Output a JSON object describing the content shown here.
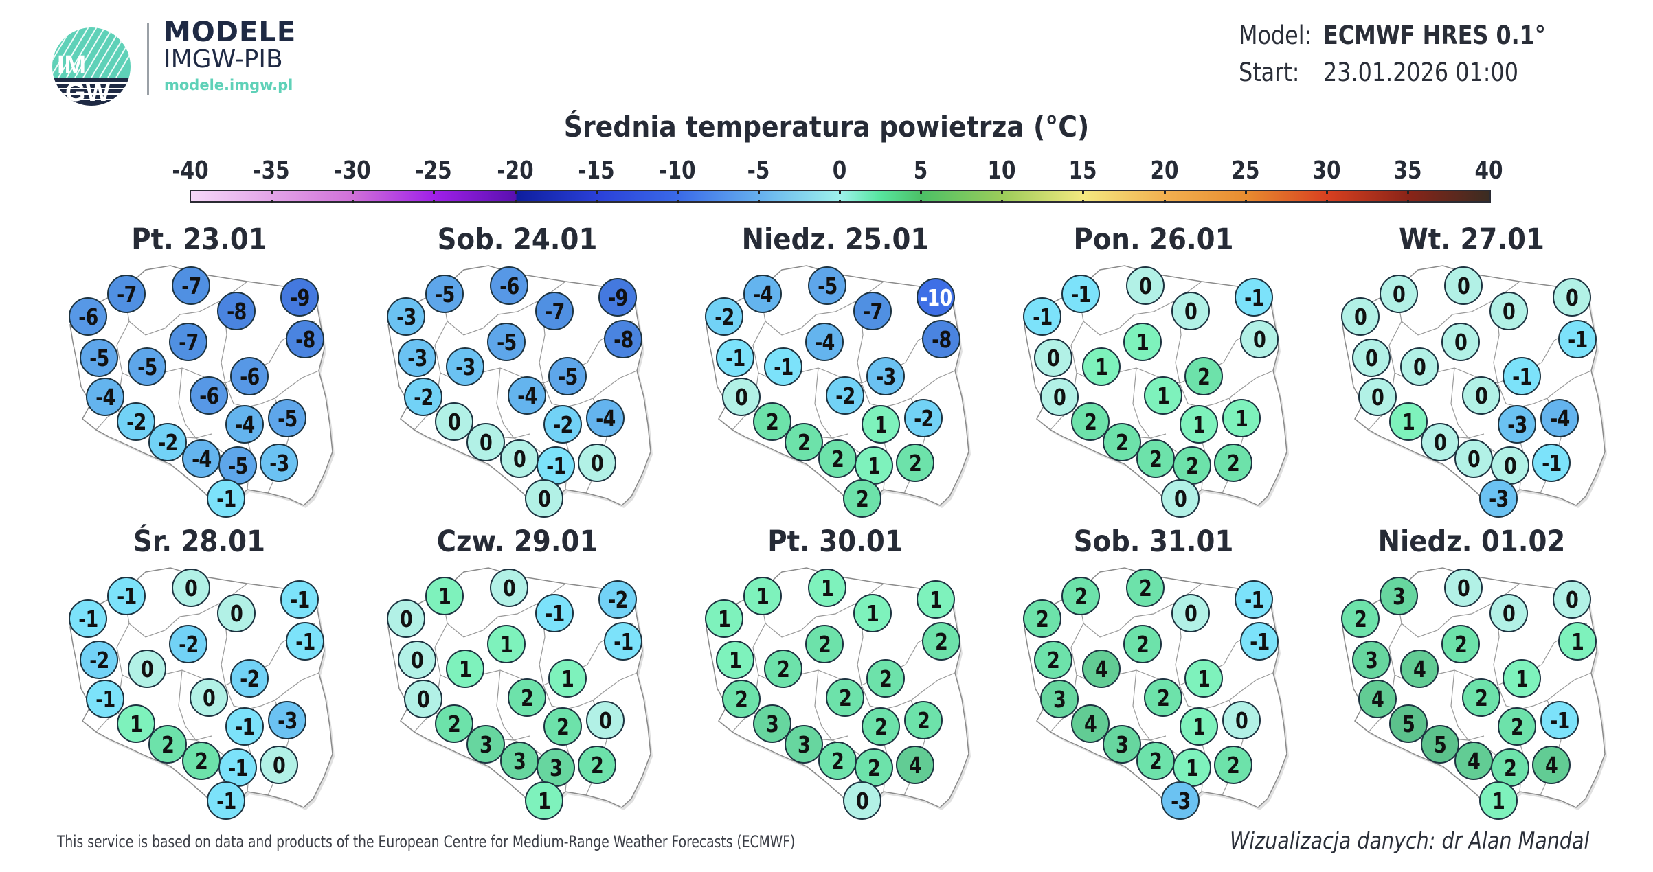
{
  "header": {
    "logo": {
      "icon": "imgw-logo-icon",
      "line1": "MODELE",
      "line2": "IMGW-PIB",
      "url": "modele.imgw.pl",
      "accent": "#5fd1b8",
      "dark": "#1f2a44"
    },
    "model_label": "Model:",
    "model_value": "ECMWF HRES 0.1°",
    "start_label": "Start:",
    "start_value": "23.01.2026 01:00"
  },
  "footer": {
    "credit": "This service is based on data and products of the European Centre for Medium-Range Weather Forecasts (ECMWF)",
    "author": "Wizualizacja danych: dr Alan Mandal"
  },
  "chart_data": {
    "type": "heatmap",
    "title": "Średnia temperatura powietrza (°C)",
    "colorbar": {
      "ticks": [
        -40,
        -35,
        -30,
        -25,
        -20,
        -15,
        -10,
        -5,
        0,
        5,
        10,
        15,
        20,
        25,
        30,
        35,
        40
      ],
      "range": [
        -40,
        40
      ],
      "unit": "°C"
    },
    "station_order": [
      "A",
      "B",
      "C",
      "D",
      "E",
      "F",
      "G",
      "H",
      "I",
      "J",
      "K",
      "L",
      "M",
      "N",
      "O",
      "P",
      "Q",
      "R",
      "S",
      "T"
    ],
    "panels": [
      {
        "label": "Pt. 23.01",
        "values": [
          -7,
          -7,
          -6,
          -8,
          -9,
          -8,
          -7,
          -5,
          -5,
          -6,
          -6,
          -4,
          -2,
          -4,
          -5,
          -2,
          -4,
          -5,
          -3,
          -1
        ]
      },
      {
        "label": "Sob. 24.01",
        "values": [
          -5,
          -6,
          -3,
          -7,
          -9,
          -8,
          -5,
          -3,
          -3,
          -5,
          -4,
          -2,
          0,
          -2,
          -4,
          0,
          0,
          -1,
          0,
          0
        ]
      },
      {
        "label": "Niedz. 25.01",
        "values": [
          -4,
          -5,
          -2,
          -7,
          -10,
          -8,
          -4,
          -1,
          -1,
          -3,
          -2,
          0,
          2,
          1,
          -2,
          2,
          2,
          1,
          2,
          2
        ]
      },
      {
        "label": "Pon. 26.01",
        "values": [
          -1,
          0,
          -1,
          0,
          -1,
          0,
          1,
          0,
          1,
          2,
          1,
          0,
          2,
          1,
          1,
          2,
          2,
          2,
          2,
          0
        ]
      },
      {
        "label": "Wt. 27.01",
        "values": [
          0,
          0,
          0,
          0,
          0,
          -1,
          0,
          0,
          0,
          -1,
          0,
          0,
          1,
          -3,
          -4,
          0,
          0,
          0,
          -1,
          -3
        ]
      },
      {
        "label": "Śr. 28.01",
        "values": [
          -1,
          0,
          -1,
          0,
          -1,
          -1,
          -2,
          -2,
          0,
          -2,
          0,
          -1,
          1,
          -1,
          -3,
          2,
          2,
          -1,
          0,
          -1
        ]
      },
      {
        "label": "Czw. 29.01",
        "values": [
          1,
          0,
          0,
          -1,
          -2,
          -1,
          1,
          0,
          1,
          1,
          2,
          0,
          2,
          2,
          0,
          3,
          3,
          3,
          2,
          1
        ]
      },
      {
        "label": "Pt. 30.01",
        "values": [
          1,
          1,
          1,
          1,
          1,
          2,
          2,
          1,
          2,
          2,
          2,
          2,
          3,
          2,
          2,
          3,
          2,
          2,
          4,
          0
        ]
      },
      {
        "label": "Sob. 31.01",
        "values": [
          2,
          2,
          2,
          0,
          -1,
          -1,
          2,
          2,
          4,
          1,
          2,
          3,
          4,
          1,
          0,
          3,
          2,
          1,
          2,
          -3
        ]
      },
      {
        "label": "Niedz. 01.02",
        "values": [
          3,
          0,
          2,
          0,
          0,
          1,
          2,
          3,
          4,
          1,
          2,
          4,
          5,
          2,
          -1,
          5,
          4,
          2,
          4,
          1
        ]
      }
    ]
  }
}
